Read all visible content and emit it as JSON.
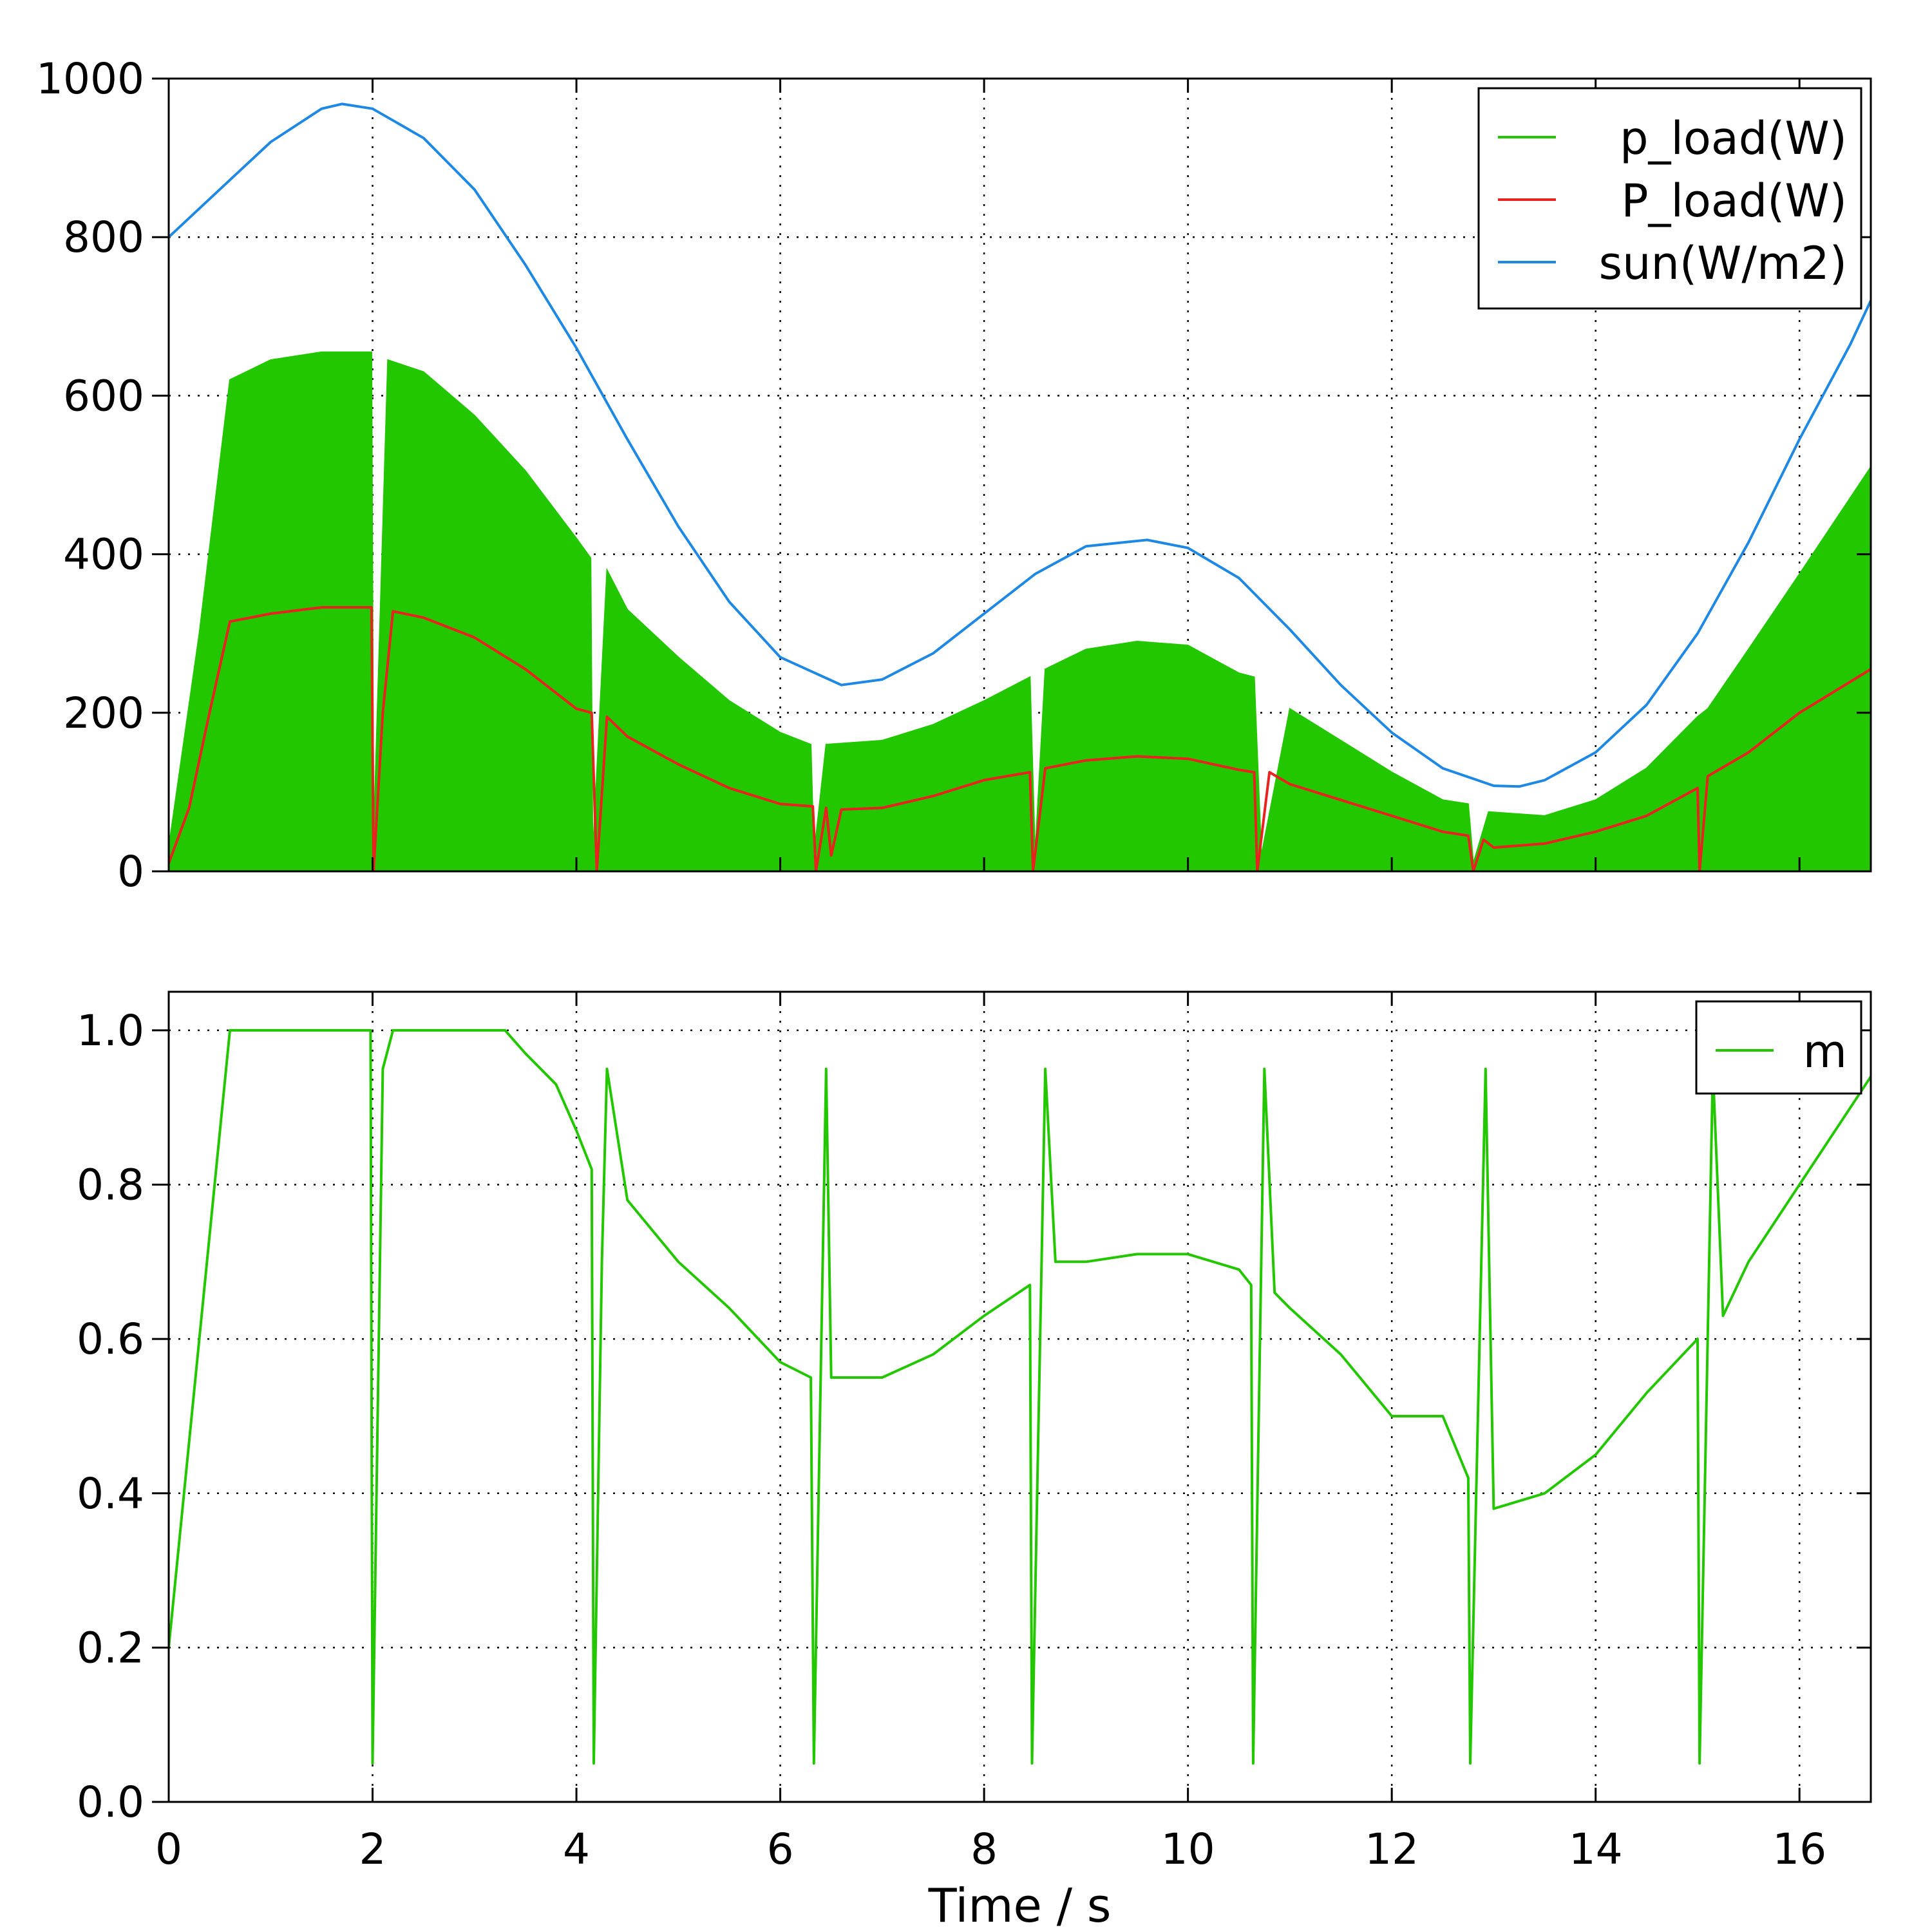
{
  "chart_data": [
    {
      "type": "line",
      "title": "",
      "xlabel": "",
      "ylabel": "",
      "xlim": [
        0,
        16.7
      ],
      "ylim": [
        0,
        1000
      ],
      "xticks": [],
      "yticks": [
        "0",
        "200",
        "400",
        "600",
        "800",
        "1000"
      ],
      "ytick_values": [
        0,
        200,
        400,
        600,
        800,
        1000
      ],
      "grid": true,
      "legend_position": "top-right",
      "series": [
        {
          "name": "p_load(W)",
          "color": "#22c700",
          "style": "filled high-frequency oscillation between 0 and envelope",
          "x": [
            0,
            0.3,
            0.6,
            1.0,
            1.5,
            1.99,
            2.01,
            2.15,
            2.5,
            3.0,
            3.5,
            4.0,
            4.14,
            4.16,
            4.3,
            4.5,
            5.0,
            5.5,
            6.0,
            6.3,
            6.33,
            6.45,
            7.0,
            7.5,
            8.0,
            8.45,
            8.5,
            8.6,
            9.0,
            9.5,
            10.0,
            10.5,
            10.65,
            10.72,
            11.0,
            11.5,
            12.0,
            12.5,
            12.75,
            12.8,
            12.95,
            13.5,
            14.0,
            14.5,
            15.0,
            15.1,
            15.5,
            16.0,
            16.7
          ],
          "envelope": [
            30,
            300,
            620,
            645,
            655,
            655,
            40,
            645,
            630,
            575,
            505,
            420,
            395,
            20,
            380,
            330,
            270,
            215,
            175,
            160,
            20,
            160,
            165,
            185,
            215,
            245,
            20,
            255,
            280,
            290,
            285,
            250,
            245,
            20,
            205,
            165,
            125,
            90,
            85,
            10,
            75,
            70,
            90,
            130,
            195,
            205,
            280,
            375,
            510
          ]
        },
        {
          "name": "P_load(W)",
          "color": "#e8231f",
          "x": [
            0,
            0.2,
            0.4,
            0.6,
            1.0,
            1.5,
            1.99,
            2.01,
            2.1,
            2.2,
            2.5,
            3.0,
            3.5,
            4.0,
            4.15,
            4.2,
            4.3,
            4.5,
            5.0,
            5.5,
            6.0,
            6.32,
            6.35,
            6.45,
            6.5,
            6.6,
            7.0,
            7.5,
            8.0,
            8.45,
            8.48,
            8.6,
            9.0,
            9.5,
            10.0,
            10.5,
            10.65,
            10.68,
            10.8,
            11.0,
            11.5,
            12.0,
            12.5,
            12.75,
            12.8,
            12.9,
            13.0,
            13.5,
            14.0,
            14.5,
            15.0,
            15.02,
            15.1,
            15.5,
            16.0,
            16.7
          ],
          "y": [
            10,
            80,
            200,
            315,
            325,
            333,
            333,
            0,
            200,
            328,
            320,
            295,
            255,
            205,
            200,
            0,
            195,
            170,
            135,
            105,
            85,
            82,
            0,
            80,
            20,
            78,
            80,
            95,
            115,
            125,
            0,
            130,
            140,
            145,
            142,
            128,
            125,
            0,
            125,
            110,
            90,
            70,
            50,
            45,
            0,
            40,
            30,
            35,
            50,
            70,
            105,
            0,
            120,
            150,
            200,
            255
          ]
        },
        {
          "name": "sun(W/m2)",
          "color": "#1e88e5",
          "x": [
            0,
            0.5,
            1.0,
            1.5,
            1.7,
            2.0,
            2.5,
            3.0,
            3.5,
            4.0,
            4.5,
            5.0,
            5.5,
            6.0,
            6.6,
            7.0,
            7.5,
            8.0,
            8.5,
            9.0,
            9.6,
            10.0,
            10.5,
            11.0,
            11.5,
            12.0,
            12.5,
            13.0,
            13.25,
            13.5,
            14.0,
            14.5,
            15.0,
            15.5,
            16.0,
            16.5,
            16.7
          ],
          "y": [
            800,
            860,
            920,
            962,
            968,
            962,
            925,
            860,
            765,
            660,
            545,
            435,
            340,
            270,
            235,
            242,
            275,
            325,
            375,
            410,
            418,
            408,
            370,
            305,
            235,
            175,
            130,
            108,
            107,
            115,
            150,
            210,
            300,
            415,
            545,
            665,
            720
          ]
        }
      ]
    },
    {
      "type": "line",
      "title": "",
      "xlabel": "Time / s",
      "ylabel": "",
      "xlim": [
        0,
        16.7
      ],
      "ylim": [
        0,
        1.05
      ],
      "xticks": [
        "0",
        "2",
        "4",
        "6",
        "8",
        "10",
        "12",
        "14",
        "16"
      ],
      "xtick_values": [
        0,
        2,
        4,
        6,
        8,
        10,
        12,
        14,
        16
      ],
      "yticks": [
        "0.0",
        "0.2",
        "0.4",
        "0.6",
        "0.8",
        "1.0"
      ],
      "ytick_values": [
        0,
        0.2,
        0.4,
        0.6,
        0.8,
        1.0
      ],
      "grid": true,
      "legend_position": "top-right",
      "series": [
        {
          "name": "m",
          "color": "#22c700",
          "x": [
            0,
            0.3,
            0.6,
            1.0,
            1.5,
            1.98,
            2.0,
            2.1,
            2.2,
            2.5,
            3.0,
            3.3,
            3.5,
            3.8,
            4.0,
            4.15,
            4.17,
            4.25,
            4.3,
            4.5,
            5.0,
            5.5,
            6.0,
            6.3,
            6.33,
            6.45,
            6.5,
            7.0,
            7.5,
            8.0,
            8.45,
            8.47,
            8.6,
            8.7,
            9.0,
            9.5,
            10.0,
            10.5,
            10.62,
            10.64,
            10.75,
            10.85,
            11.0,
            11.5,
            12.0,
            12.5,
            12.75,
            12.77,
            12.92,
            13.0,
            13.5,
            14.0,
            14.5,
            15.0,
            15.02,
            15.15,
            15.25,
            15.5,
            16.0,
            16.7
          ],
          "y": [
            0.2,
            0.6,
            1.0,
            1.0,
            1.0,
            1.0,
            0.05,
            0.95,
            1.0,
            1.0,
            1.0,
            1.0,
            0.97,
            0.93,
            0.87,
            0.82,
            0.05,
            0.7,
            0.95,
            0.78,
            0.7,
            0.64,
            0.57,
            0.55,
            0.05,
            0.95,
            0.55,
            0.55,
            0.58,
            0.63,
            0.67,
            0.05,
            0.95,
            0.7,
            0.7,
            0.71,
            0.71,
            0.69,
            0.67,
            0.05,
            0.95,
            0.66,
            0.64,
            0.58,
            0.5,
            0.5,
            0.42,
            0.05,
            0.95,
            0.38,
            0.4,
            0.45,
            0.53,
            0.6,
            0.05,
            0.95,
            0.63,
            0.7,
            0.8,
            0.94
          ]
        }
      ]
    }
  ]
}
